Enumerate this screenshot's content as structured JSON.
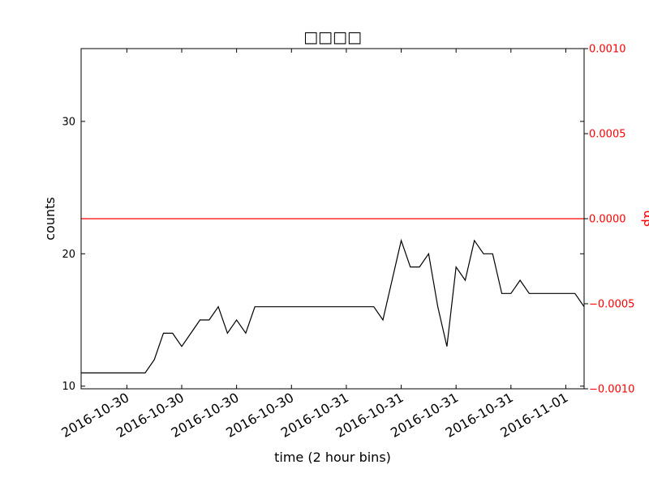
{
  "chart_data": {
    "type": "line",
    "title": "□□□□",
    "xlabel": "time (2 hour bins)",
    "ylabel": "counts",
    "y2label": "αβ",
    "ylim": [
      9.8,
      35.5
    ],
    "y2lim": [
      -0.001,
      0.001
    ],
    "yticks": [
      10,
      20,
      30
    ],
    "y2ticks": [
      -0.001,
      -0.0005,
      0.0,
      0.0005,
      0.001
    ],
    "y2tick_labels": [
      "−0.0010",
      "−0.0005",
      "0.0000",
      "0.0005",
      "0.0010"
    ],
    "xlim": [
      0,
      55
    ],
    "xticks": [
      5,
      11,
      17,
      23,
      29,
      35,
      41,
      47,
      53
    ],
    "xtick_labels": [
      "2016-10-30",
      "2016-10-30",
      "2016-10-30",
      "2016-10-30",
      "2016-10-31",
      "2016-10-31",
      "2016-10-31",
      "2016-10-31",
      "2016-11-01"
    ],
    "grid": false,
    "series": [
      {
        "axis": "left",
        "color": "#000000",
        "x": [
          0,
          1,
          2,
          3,
          4,
          5,
          6,
          7,
          8,
          9,
          10,
          11,
          12,
          13,
          14,
          15,
          16,
          17,
          18,
          19,
          20,
          21,
          22,
          23,
          24,
          25,
          26,
          27,
          28,
          29,
          30,
          31,
          32,
          33,
          34,
          35,
          36,
          37,
          38,
          39,
          40,
          41,
          42,
          43,
          44,
          45,
          46,
          47,
          48,
          49,
          50,
          51,
          52,
          53,
          54,
          55
        ],
        "values": [
          11,
          11,
          11,
          11,
          11,
          11,
          11,
          11,
          12,
          14,
          14,
          13,
          14,
          15,
          15,
          16,
          14,
          15,
          14,
          16,
          16,
          16,
          16,
          16,
          16,
          16,
          16,
          16,
          16,
          16,
          16,
          16,
          16,
          15,
          18,
          21,
          19,
          19,
          20,
          16,
          13,
          19,
          18,
          21,
          20,
          20,
          17,
          17,
          18,
          17,
          17,
          17,
          17,
          17,
          17,
          16
        ]
      },
      {
        "axis": "right",
        "color": "#ff0000",
        "x": [
          0,
          55
        ],
        "values": [
          0.0,
          0.0
        ]
      }
    ]
  }
}
